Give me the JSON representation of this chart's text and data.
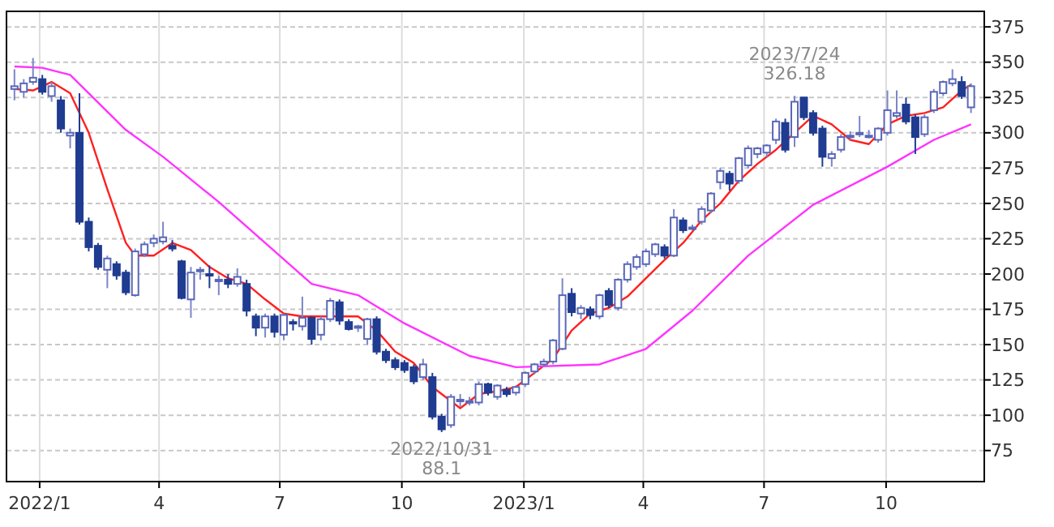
{
  "chart_data": {
    "type": "candlestick",
    "colors": [
      "#ffffff",
      "#ffffff",
      "#ffffff",
      "#1f3c91",
      "#ffffff",
      "#1f3c91",
      "#ffffff",
      "#1f3c91",
      "#1f3c91",
      "#1f3c91",
      "#ffffff",
      "#1f3c91",
      "#1f3c91",
      "#ffffff",
      "#ffffff",
      "#ffffff",
      "#ffffff",
      "#1f3c91",
      "#1f3c91",
      "#ffffff",
      "#ffffff",
      "#1f3c91",
      "#ffffff",
      "#1f3c91",
      "#ffffff",
      "#1f3c91",
      "#1f3c91",
      "#ffffff",
      "#1f3c91",
      "#ffffff",
      "#1f3c91",
      "#ffffff",
      "#1f3c91",
      "#ffffff",
      "#ffffff",
      "#1f3c91",
      "#1f3c91",
      "#ffffff",
      "#ffffff",
      "#1f3c91",
      "#1f3c91",
      "#1f3c91",
      "#1f3c91",
      "#1f3c91",
      "#ffffff",
      "#1f3c91",
      "#1f3c91",
      "#ffffff",
      "#ffffff",
      "#ffffff",
      "#ffffff",
      "#1f3c91",
      "#ffffff",
      "#1f3c91",
      "#ffffff",
      "#ffffff",
      "#ffffff",
      "#ffffff",
      "#ffffff",
      "#ffffff",
      "#1f3c91",
      "#ffffff",
      "#1f3c91",
      "#ffffff",
      "#1f3c91",
      "#ffffff",
      "#ffffff",
      "#ffffff",
      "#ffffff",
      "#ffffff",
      "#1f3c91",
      "#ffffff",
      "#1f3c91",
      "#ffffff",
      "#ffffff",
      "#ffffff",
      "#ffffff",
      "#1f3c91",
      "#ffffff",
      "#ffffff",
      "#ffffff",
      "#ffffff",
      "#ffffff",
      "#1f3c91",
      "#ffffff",
      "#1f3c91",
      "#1f3c91",
      "#1f3c91",
      "#ffffff",
      "#ffffff",
      "#ffffff",
      "#ffffff",
      "#ffffff",
      "#ffffff",
      "#ffffff",
      "#ffffff",
      "#1f3c91",
      "#1f3c91",
      "#ffffff",
      "#ffffff",
      "#ffffff",
      "#ffffff",
      "#1f3c91",
      "#ffffff"
    ],
    "x": [
      "2021-12-13",
      "2021-12-20",
      "2021-12-27",
      "2022-01-03",
      "2022-01-10",
      "2022-01-17",
      "2022-01-24",
      "2022-01-31",
      "2022-02-07",
      "2022-02-14",
      "2022-02-21",
      "2022-02-28",
      "2022-03-07",
      "2022-03-14",
      "2022-03-21",
      "2022-03-28",
      "2022-04-04",
      "2022-04-11",
      "2022-04-18",
      "2022-04-25",
      "2022-05-02",
      "2022-05-09",
      "2022-05-16",
      "2022-05-23",
      "2022-05-30",
      "2022-06-06",
      "2022-06-13",
      "2022-06-20",
      "2022-06-27",
      "2022-07-04",
      "2022-07-11",
      "2022-07-18",
      "2022-07-25",
      "2022-08-01",
      "2022-08-08",
      "2022-08-15",
      "2022-08-22",
      "2022-08-29",
      "2022-09-05",
      "2022-09-12",
      "2022-09-19",
      "2022-09-26",
      "2022-10-03",
      "2022-10-10",
      "2022-10-17",
      "2022-10-24",
      "2022-10-31",
      "2022-11-07",
      "2022-11-14",
      "2022-11-21",
      "2022-11-28",
      "2022-12-05",
      "2022-12-12",
      "2022-12-19",
      "2022-12-26",
      "2023-01-02",
      "2023-01-09",
      "2023-01-16",
      "2023-01-23",
      "2023-01-30",
      "2023-02-06",
      "2023-02-13",
      "2023-02-20",
      "2023-02-27",
      "2023-03-06",
      "2023-03-13",
      "2023-03-20",
      "2023-03-27",
      "2023-04-03",
      "2023-04-10",
      "2023-04-17",
      "2023-04-24",
      "2023-05-01",
      "2023-05-08",
      "2023-05-15",
      "2023-05-22",
      "2023-05-29",
      "2023-06-05",
      "2023-06-12",
      "2023-06-19",
      "2023-06-26",
      "2023-07-03",
      "2023-07-10",
      "2023-07-17",
      "2023-07-24",
      "2023-07-31",
      "2023-08-07",
      "2023-08-14",
      "2023-08-21",
      "2023-08-28",
      "2023-09-04",
      "2023-09-11",
      "2023-09-18",
      "2023-09-25",
      "2023-10-02",
      "2023-10-09",
      "2023-10-16",
      "2023-10-23",
      "2023-10-30",
      "2023-11-06",
      "2023-11-13",
      "2023-11-20",
      "2023-11-27",
      "2023-12-04"
    ],
    "ohlc": [
      [
        331,
        345,
        323,
        333
      ],
      [
        329,
        338,
        325,
        335
      ],
      [
        336,
        353,
        334,
        339
      ],
      [
        338,
        341,
        327,
        329
      ],
      [
        326,
        336,
        322,
        333
      ],
      [
        323,
        326,
        300,
        303
      ],
      [
        298,
        303,
        289,
        300
      ],
      [
        300,
        328,
        235,
        237
      ],
      [
        237,
        240,
        216,
        219
      ],
      [
        220,
        222,
        203,
        205
      ],
      [
        203,
        213,
        190,
        211
      ],
      [
        207,
        209,
        196,
        199
      ],
      [
        201,
        203,
        185,
        187
      ],
      [
        185,
        218,
        184,
        216
      ],
      [
        214,
        223,
        212,
        221
      ],
      [
        222,
        228,
        219,
        225
      ],
      [
        223,
        237,
        221,
        226
      ],
      [
        220,
        224,
        216,
        218
      ],
      [
        209,
        210,
        182,
        183
      ],
      [
        182,
        205,
        169,
        201
      ],
      [
        202,
        205,
        196,
        203
      ],
      [
        200,
        206,
        190,
        199
      ],
      [
        196,
        199,
        185,
        196
      ],
      [
        196,
        200,
        190,
        193
      ],
      [
        193,
        204,
        191,
        198
      ],
      [
        193,
        196,
        170,
        174
      ],
      [
        170,
        172,
        156,
        162
      ],
      [
        162,
        172,
        155,
        170
      ],
      [
        170,
        172,
        155,
        159
      ],
      [
        157,
        172,
        153,
        171
      ],
      [
        166,
        168,
        160,
        165
      ],
      [
        163,
        184,
        160,
        169
      ],
      [
        169,
        170,
        150,
        154
      ],
      [
        157,
        170,
        153,
        168
      ],
      [
        168,
        183,
        166,
        181
      ],
      [
        180,
        182,
        164,
        167
      ],
      [
        166,
        168,
        160,
        161
      ],
      [
        162,
        164,
        159,
        163
      ],
      [
        154,
        169,
        150,
        168
      ],
      [
        168,
        170,
        143,
        145
      ],
      [
        145,
        147,
        137,
        139
      ],
      [
        139,
        141,
        132,
        134
      ],
      [
        137,
        139,
        130,
        132
      ],
      [
        134,
        136,
        122,
        124
      ],
      [
        127,
        140,
        125,
        136
      ],
      [
        127,
        130,
        97,
        99
      ],
      [
        99,
        101,
        88.1,
        90
      ],
      [
        93,
        115,
        91,
        113
      ],
      [
        110,
        115,
        106,
        111
      ],
      [
        110,
        113,
        107,
        110
      ],
      [
        109,
        124,
        107,
        122
      ],
      [
        122,
        123,
        114,
        116
      ],
      [
        113,
        122,
        111,
        121
      ],
      [
        118,
        120,
        113,
        115
      ],
      [
        116,
        121,
        114,
        120
      ],
      [
        122,
        131,
        120,
        130
      ],
      [
        131,
        137,
        129,
        136
      ],
      [
        136,
        140,
        134,
        138
      ],
      [
        138,
        154,
        136,
        153
      ],
      [
        147,
        197,
        146,
        185
      ],
      [
        186,
        190,
        170,
        173
      ],
      [
        172,
        178,
        168,
        176
      ],
      [
        175,
        177,
        168,
        171
      ],
      [
        170,
        186,
        168,
        185
      ],
      [
        188,
        190,
        176,
        178
      ],
      [
        176,
        197,
        174,
        196
      ],
      [
        196,
        209,
        194,
        207
      ],
      [
        205,
        214,
        203,
        212
      ],
      [
        207,
        218,
        205,
        216
      ],
      [
        214,
        222,
        212,
        221
      ],
      [
        219,
        221,
        211,
        213
      ],
      [
        213,
        246,
        212,
        240
      ],
      [
        238,
        240,
        229,
        231
      ],
      [
        232,
        235,
        231,
        233
      ],
      [
        237,
        248,
        235,
        246
      ],
      [
        245,
        258,
        243,
        257
      ],
      [
        265,
        275,
        260,
        273
      ],
      [
        271,
        273,
        259,
        264
      ],
      [
        266,
        283,
        264,
        282
      ],
      [
        277,
        291,
        275,
        289
      ],
      [
        285,
        290,
        282,
        289
      ],
      [
        286,
        292,
        283,
        291
      ],
      [
        295,
        310,
        292,
        308
      ],
      [
        307,
        310,
        286,
        288
      ],
      [
        297,
        326.18,
        290,
        322
      ],
      [
        325,
        325,
        309,
        311
      ],
      [
        314,
        316,
        298,
        300
      ],
      [
        303,
        305,
        276,
        283
      ],
      [
        282,
        287,
        276,
        285
      ],
      [
        288,
        299,
        286,
        297
      ],
      [
        297,
        301,
        295,
        298
      ],
      [
        299,
        312,
        297,
        300
      ],
      [
        298,
        302,
        296,
        298
      ],
      [
        295,
        304,
        293,
        303
      ],
      [
        300,
        330,
        298,
        316
      ],
      [
        312,
        330,
        310,
        314
      ],
      [
        320,
        325,
        306,
        308
      ],
      [
        311,
        313,
        285,
        297
      ],
      [
        299,
        313,
        297,
        311
      ],
      [
        316,
        331,
        314,
        329
      ],
      [
        328,
        337,
        326,
        336
      ],
      [
        335,
        345,
        333,
        338
      ],
      [
        336,
        340,
        324,
        326
      ],
      [
        318,
        335,
        314,
        333
      ]
    ],
    "series": [
      {
        "type": "line",
        "color": "#ff2020",
        "x": [
          "2021-12-13",
          "2021-12-27",
          "2022-01-10",
          "2022-01-24",
          "2022-02-07",
          "2022-02-21",
          "2022-03-07",
          "2022-03-14",
          "2022-03-28",
          "2022-04-11",
          "2022-04-25",
          "2022-05-09",
          "2022-05-23",
          "2022-06-06",
          "2022-06-20",
          "2022-07-04",
          "2022-07-18",
          "2022-08-01",
          "2022-08-15",
          "2022-08-29",
          "2022-09-12",
          "2022-09-26",
          "2022-10-10",
          "2022-10-24",
          "2022-11-07",
          "2022-11-14",
          "2022-11-28",
          "2022-12-12",
          "2022-12-26",
          "2023-01-09",
          "2023-01-23",
          "2023-02-06",
          "2023-02-20",
          "2023-03-06",
          "2023-03-20",
          "2023-04-03",
          "2023-04-17",
          "2023-05-01",
          "2023-05-15",
          "2023-05-29",
          "2023-06-12",
          "2023-06-26",
          "2023-07-10",
          "2023-07-24",
          "2023-08-07",
          "2023-08-21",
          "2023-09-04",
          "2023-09-18",
          "2023-10-02",
          "2023-10-16",
          "2023-10-30",
          "2023-11-13",
          "2023-11-27",
          "2023-12-04"
        ],
        "values": [
          331,
          330,
          336,
          328,
          300,
          260,
          222,
          213,
          213,
          222,
          217,
          205,
          197,
          193,
          182,
          172,
          170,
          170,
          170,
          170,
          160,
          145,
          137,
          120,
          110,
          105,
          115,
          117,
          120,
          130,
          140,
          160,
          172,
          176,
          184,
          197,
          210,
          222,
          238,
          250,
          266,
          278,
          288,
          300,
          312,
          306,
          295,
          292,
          306,
          312,
          314,
          318,
          330,
          334
        ]
      },
      {
        "type": "line",
        "color": "#ff33ff",
        "x": [
          "2021-12-13",
          "2022-01-03",
          "2022-01-24",
          "2022-03-07",
          "2022-04-04",
          "2022-05-16",
          "2022-06-20",
          "2022-07-25",
          "2022-08-29",
          "2022-10-03",
          "2022-11-21",
          "2022-12-26",
          "2023-02-27",
          "2023-04-03",
          "2023-05-08",
          "2023-06-19",
          "2023-08-07",
          "2023-10-02",
          "2023-11-06",
          "2023-12-04"
        ],
        "values": [
          347,
          346,
          341,
          302,
          283,
          251,
          222,
          193,
          185,
          165,
          142,
          134,
          136,
          147,
          174,
          213,
          249,
          276,
          295,
          306
        ]
      }
    ],
    "xlim": [
      "2021-12-07",
      "2023-12-14"
    ],
    "xticks": [
      {
        "value": "2022-01-01",
        "label": "2022/1"
      },
      {
        "value": "2022-04-01",
        "label": "4"
      },
      {
        "value": "2022-07-01",
        "label": "7"
      },
      {
        "value": "2022-10-01",
        "label": "10"
      },
      {
        "value": "2023-01-01",
        "label": "2023/1"
      },
      {
        "value": "2023-04-01",
        "label": "4"
      },
      {
        "value": "2023-07-01",
        "label": "7"
      },
      {
        "value": "2023-10-01",
        "label": "10"
      }
    ],
    "ylim": [
      53,
      386
    ],
    "yticks": [
      75,
      100,
      125,
      150,
      175,
      200,
      225,
      250,
      275,
      300,
      325,
      350,
      375
    ],
    "grid": true,
    "annotations": [
      {
        "text": "2023/7/24\n326.18",
        "x": "2023-07-24",
        "y": 326.18
      },
      {
        "text": "2022/10/31\n88.1",
        "x": "2022-10-31",
        "y": 88.1
      }
    ]
  }
}
